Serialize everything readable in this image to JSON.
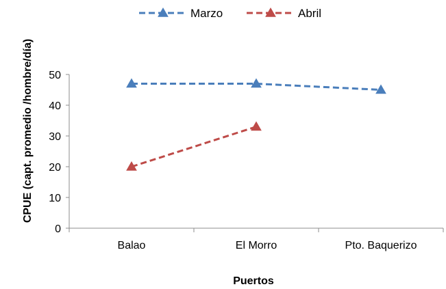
{
  "chart_data": {
    "type": "line",
    "categories": [
      "Balao",
      "El Morro",
      "Pto. Baquerizo"
    ],
    "series": [
      {
        "name": "Marzo",
        "values": [
          47,
          47,
          45
        ],
        "color": "#4a7ebb",
        "marker": "triangle",
        "dash": "dashed"
      },
      {
        "name": "Abril",
        "values": [
          20,
          33,
          null
        ],
        "color": "#be4b48",
        "marker": "triangle",
        "dash": "dashed"
      }
    ],
    "xlabel": "Puertos",
    "ylabel": "CPUE (capt. promedio /hombre/día)",
    "ylim": [
      0,
      50
    ],
    "yticks": [
      0,
      10,
      20,
      30,
      40,
      50
    ],
    "grid": false,
    "legend": "top-center"
  }
}
